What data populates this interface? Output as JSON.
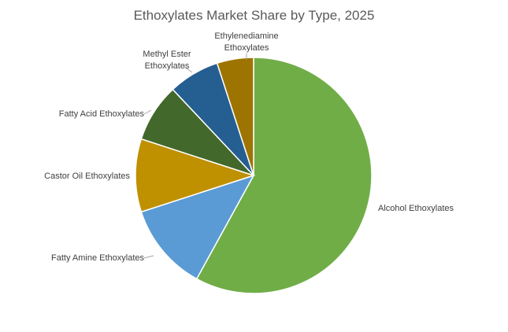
{
  "chart_data": {
    "type": "pie",
    "title": "Ethoxylates Market Share by Type, 2025",
    "categories": [
      "Alcohol Ethoxylates",
      "Fatty Amine Ethoxylates",
      "Castor Oil Ethoxylates",
      "Fatty Acid Ethoxylates",
      "Methyl Ester Ethoxylates",
      "Ethylenediamine Ethoxylates"
    ],
    "values": [
      58,
      12,
      10,
      8,
      7,
      5
    ],
    "colors": [
      "#70ad47",
      "#5b9bd5",
      "#bf9000",
      "#43682b",
      "#255e91",
      "#9e7400"
    ]
  }
}
